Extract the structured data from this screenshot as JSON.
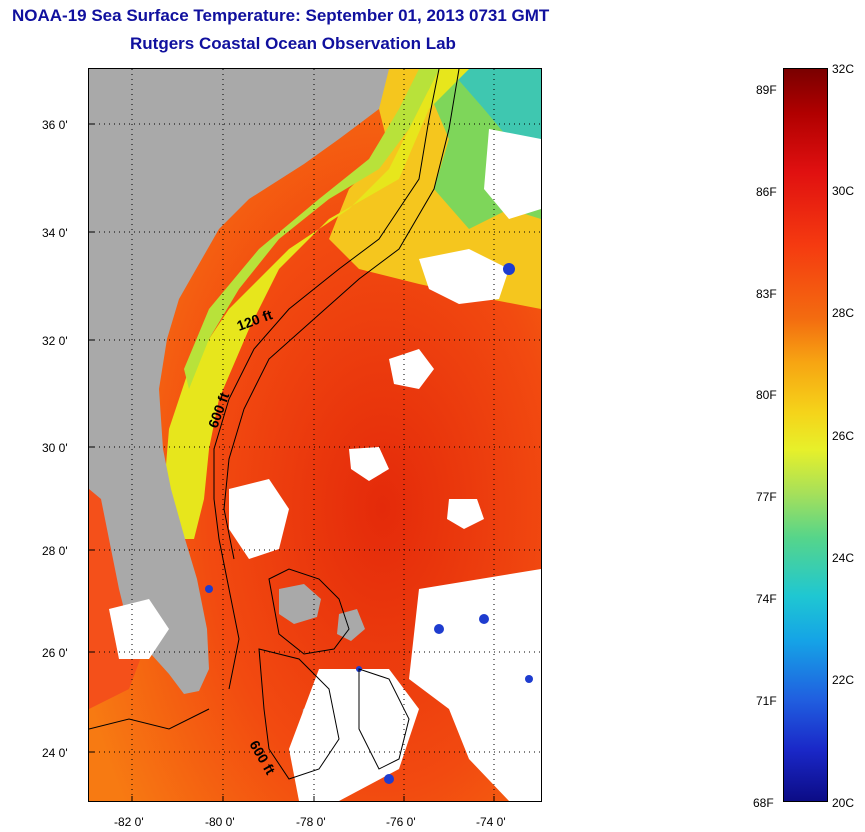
{
  "title": {
    "line1": "NOAA-19 Sea Surface Temperature:  September 01, 2013 0731 GMT",
    "line2": "Rutgers Coastal Ocean Observation Lab"
  },
  "map": {
    "lat_ticks": [
      "36 0'",
      "34 0'",
      "32 0'",
      "30 0'",
      "28 0'",
      "26 0'",
      "24 0'"
    ],
    "lon_ticks": [
      "-82 0'",
      "-80 0'",
      "-78 0'",
      "-76 0'",
      "-74 0'"
    ],
    "contour_labels": [
      "120 ft",
      "600 ft",
      "600 ft"
    ],
    "colors": {
      "land": "#a9a9a9",
      "cloud": "#ffffff",
      "warm_water": "#f24a10",
      "shelf_water": "#e7e61c",
      "cool_water": "#17b7d8"
    }
  },
  "colorbar": {
    "fahrenheit_labels": [
      "89F",
      "86F",
      "83F",
      "80F",
      "77F",
      "74F",
      "71F",
      "68F"
    ],
    "celsius_labels": [
      "32C",
      "30C",
      "28C",
      "26C",
      "24C",
      "22C",
      "20C"
    ],
    "range_c": [
      20,
      32
    ],
    "range_f": [
      68,
      89.6
    ]
  }
}
